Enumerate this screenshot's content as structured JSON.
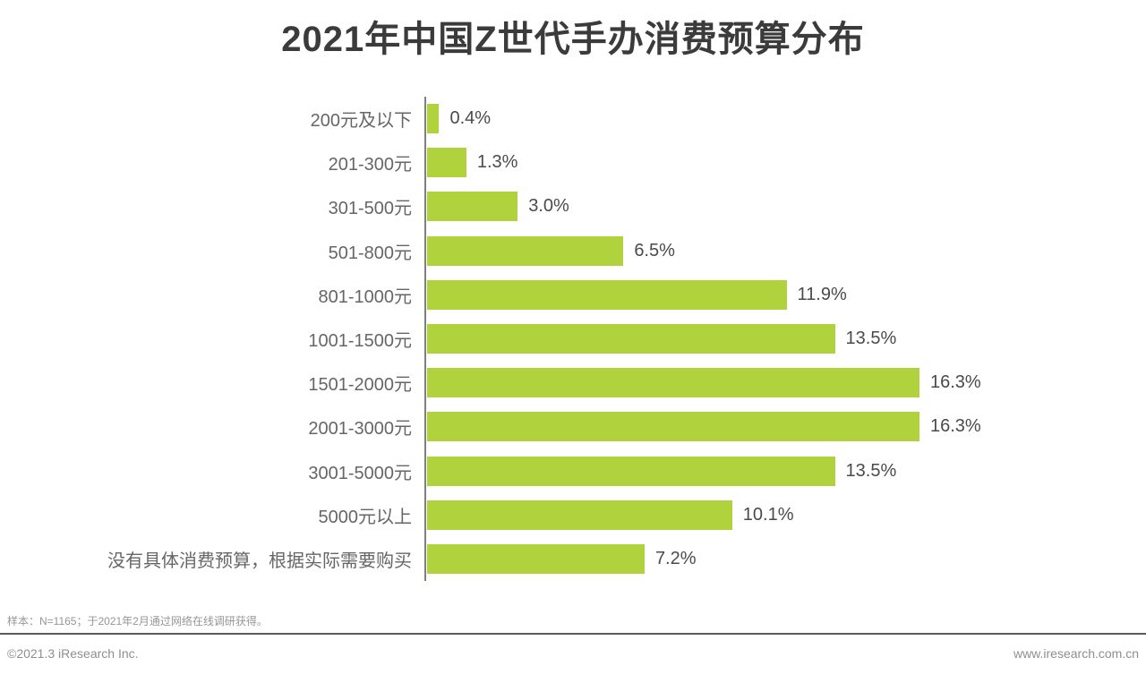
{
  "title": "2021年中国Z世代手办消费预算分布",
  "chart_data": {
    "type": "bar",
    "orientation": "horizontal",
    "title": "2021年中国Z世代手办消费预算分布",
    "categories": [
      "200元及以下",
      "201-300元",
      "301-500元",
      "501-800元",
      "801-1000元",
      "1001-1500元",
      "1501-2000元",
      "2001-3000元",
      "3001-5000元",
      "5000元以上",
      "没有具体消费预算，根据实际需要购买"
    ],
    "values": [
      0.4,
      1.3,
      3.0,
      6.5,
      11.9,
      13.5,
      16.3,
      16.3,
      13.5,
      10.1,
      7.2
    ],
    "value_labels": [
      "0.4%",
      "1.3%",
      "3.0%",
      "6.5%",
      "11.9%",
      "13.5%",
      "16.3%",
      "16.3%",
      "13.5%",
      "10.1%",
      "7.2%"
    ],
    "xlabel": "",
    "ylabel": "",
    "xlim": [
      0,
      16.3
    ],
    "grid": false,
    "legend": false,
    "bar_color": "#b0d23d",
    "axis_color": "#7f7f7f"
  },
  "footer": {
    "note": "样本：N=1165；于2021年2月通过网络在线调研获得。",
    "copyright": "©2021.3 iResearch Inc.",
    "website": "www.iresearch.com.cn"
  }
}
